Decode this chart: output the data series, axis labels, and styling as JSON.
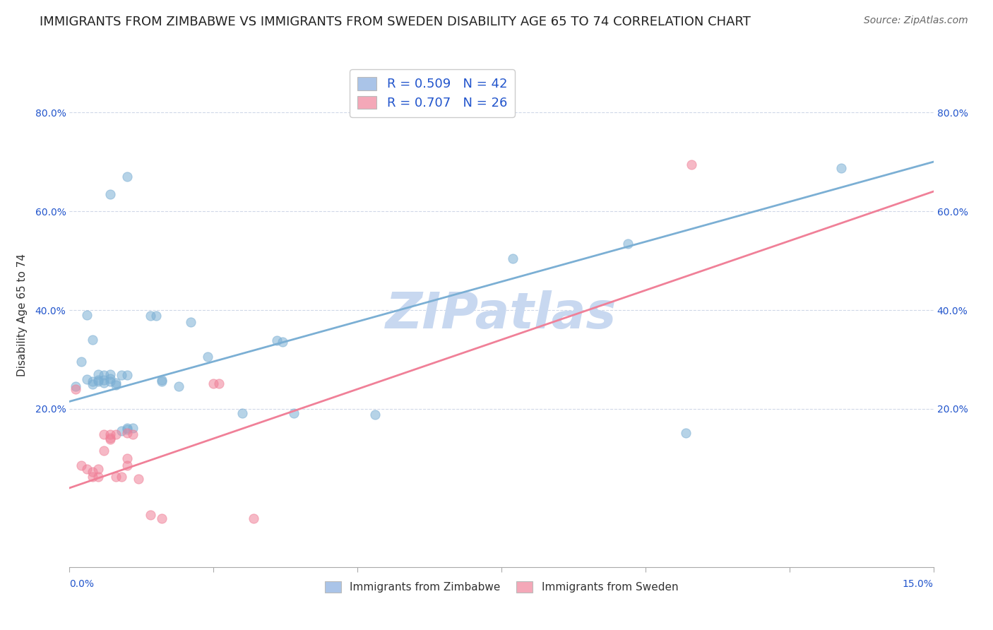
{
  "title": "IMMIGRANTS FROM ZIMBABWE VS IMMIGRANTS FROM SWEDEN DISABILITY AGE 65 TO 74 CORRELATION CHART",
  "source": "Source: ZipAtlas.com",
  "ylabel": "Disability Age 65 to 74",
  "yaxis_ticks": [
    0.2,
    0.4,
    0.6,
    0.8
  ],
  "yaxis_labels": [
    "20.0%",
    "40.0%",
    "60.0%",
    "80.0%"
  ],
  "xlim": [
    0.0,
    0.15
  ],
  "ylim": [
    -0.12,
    0.9
  ],
  "watermark": "ZIPatlas",
  "legend_entries": [
    {
      "label": "R = 0.509   N = 42",
      "color": "#aac4e8"
    },
    {
      "label": "R = 0.707   N = 26",
      "color": "#f4a8b8"
    }
  ],
  "zim_color": "#7bafd4",
  "swe_color": "#f08098",
  "zim_scatter": [
    [
      0.001,
      0.245
    ],
    [
      0.007,
      0.635
    ],
    [
      0.01,
      0.67
    ],
    [
      0.003,
      0.39
    ],
    [
      0.004,
      0.34
    ],
    [
      0.002,
      0.295
    ],
    [
      0.003,
      0.26
    ],
    [
      0.004,
      0.255
    ],
    [
      0.004,
      0.25
    ],
    [
      0.005,
      0.27
    ],
    [
      0.005,
      0.258
    ],
    [
      0.005,
      0.255
    ],
    [
      0.006,
      0.268
    ],
    [
      0.006,
      0.258
    ],
    [
      0.006,
      0.253
    ],
    [
      0.007,
      0.27
    ],
    [
      0.007,
      0.262
    ],
    [
      0.007,
      0.255
    ],
    [
      0.008,
      0.253
    ],
    [
      0.008,
      0.248
    ],
    [
      0.009,
      0.268
    ],
    [
      0.009,
      0.155
    ],
    [
      0.01,
      0.162
    ],
    [
      0.01,
      0.268
    ],
    [
      0.01,
      0.158
    ],
    [
      0.011,
      0.162
    ],
    [
      0.014,
      0.388
    ],
    [
      0.015,
      0.388
    ],
    [
      0.016,
      0.258
    ],
    [
      0.016,
      0.255
    ],
    [
      0.019,
      0.245
    ],
    [
      0.021,
      0.375
    ],
    [
      0.024,
      0.305
    ],
    [
      0.03,
      0.192
    ],
    [
      0.036,
      0.338
    ],
    [
      0.037,
      0.335
    ],
    [
      0.039,
      0.192
    ],
    [
      0.053,
      0.188
    ],
    [
      0.077,
      0.505
    ],
    [
      0.097,
      0.535
    ],
    [
      0.107,
      0.152
    ],
    [
      0.134,
      0.688
    ]
  ],
  "swe_scatter": [
    [
      0.001,
      0.24
    ],
    [
      0.002,
      0.085
    ],
    [
      0.003,
      0.078
    ],
    [
      0.004,
      0.062
    ],
    [
      0.004,
      0.072
    ],
    [
      0.005,
      0.078
    ],
    [
      0.005,
      0.062
    ],
    [
      0.006,
      0.115
    ],
    [
      0.006,
      0.148
    ],
    [
      0.007,
      0.148
    ],
    [
      0.007,
      0.142
    ],
    [
      0.007,
      0.138
    ],
    [
      0.008,
      0.148
    ],
    [
      0.008,
      0.062
    ],
    [
      0.009,
      0.062
    ],
    [
      0.01,
      0.1
    ],
    [
      0.01,
      0.085
    ],
    [
      0.01,
      0.152
    ],
    [
      0.011,
      0.148
    ],
    [
      0.012,
      0.058
    ],
    [
      0.014,
      -0.015
    ],
    [
      0.016,
      -0.022
    ],
    [
      0.025,
      0.252
    ],
    [
      0.026,
      0.252
    ],
    [
      0.032,
      -0.022
    ],
    [
      0.108,
      0.695
    ]
  ],
  "zim_line": {
    "x0": 0.0,
    "y0": 0.215,
    "x1": 0.15,
    "y1": 0.7
  },
  "swe_line": {
    "x0": 0.0,
    "y0": 0.04,
    "x1": 0.15,
    "y1": 0.64
  },
  "grid_color": "#d0d8e8",
  "background_color": "#ffffff",
  "title_fontsize": 13,
  "source_fontsize": 10,
  "axis_label_fontsize": 11,
  "tick_fontsize": 10,
  "watermark_color": "#c8d8f0",
  "watermark_fontsize": 52,
  "legend_color": "#2255cc"
}
